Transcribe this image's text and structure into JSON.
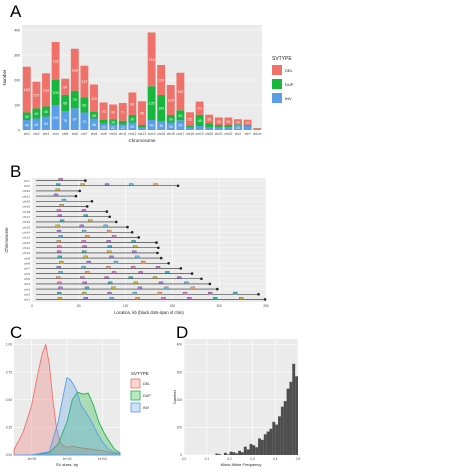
{
  "panels": {
    "A": "A",
    "B": "B",
    "C": "C",
    "D": "D"
  },
  "colors": {
    "DEL": "#f0716a",
    "DUP": "#18b63c",
    "INV": "#5a9ee8",
    "panel_bg": "#ebebeb",
    "grid": "#ffffff",
    "hist": "#4d4d4d",
    "chrom_line": "#222222"
  },
  "chart_data": [
    {
      "panel": "A",
      "type": "bar",
      "stacked": true,
      "xlabel": "Chromosome",
      "ylabel": "Number",
      "ylim": [
        0,
        420
      ],
      "yticks": [
        0,
        100,
        200,
        300,
        400
      ],
      "categories": [
        "chr1",
        "chr2",
        "chr3",
        "chr4",
        "chr5",
        "chr6",
        "chr7",
        "chr8",
        "chr9",
        "chr10",
        "chr11",
        "chr12",
        "chr13",
        "chr14",
        "chr15",
        "chr16",
        "chr17",
        "chr18",
        "chr19",
        "chr20",
        "chr21",
        "chr22",
        "chrX",
        "chrY",
        "chrUn"
      ],
      "legend_title": "SVTYPE",
      "legend_position": "right",
      "series": [
        {
          "name": "INV",
          "color_key": "INV",
          "values": [
            40,
            46,
            54,
            100,
            75,
            87,
            70,
            46,
            25,
            22,
            22,
            30,
            9,
            40,
            36,
            30,
            39,
            9,
            16,
            12,
            12,
            12,
            20,
            18,
            3
          ]
        },
        {
          "name": "DUP",
          "color_key": "DUP",
          "values": [
            30,
            40,
            40,
            100,
            66,
            70,
            60,
            26,
            15,
            20,
            15,
            30,
            11,
            135,
            104,
            30,
            40,
            10,
            45,
            14,
            8,
            8,
            3,
            3,
            2
          ]
        },
        {
          "name": "DEL",
          "color_key": "DEL",
          "values": [
            183,
            107,
            133,
            152,
            64,
            168,
            127,
            110,
            70,
            60,
            71,
            90,
            95,
            215,
            120,
            120,
            150,
            52,
            53,
            35,
            30,
            30,
            20,
            20,
            3
          ]
        }
      ],
      "value_labels": [
        "183",
        "40",
        "107",
        "46",
        "133",
        "54",
        "152",
        "175",
        "100",
        "64",
        "75",
        "168",
        "96",
        "87",
        "127",
        "60",
        "70",
        "110",
        "46",
        "25",
        "21",
        "71",
        "90",
        "95",
        "135",
        "104",
        "215",
        "96",
        "120",
        "40",
        "30",
        "12",
        "39",
        "9",
        "12",
        "12",
        "20",
        "9",
        "20",
        "18"
      ]
    },
    {
      "panel": "B",
      "type": "scatter",
      "xlabel": "Location, kb (black dots-span of chm)",
      "ylabel": "Chromosome",
      "xlim": [
        0,
        250
      ],
      "xticks": [
        "0",
        "50",
        "100",
        "150",
        "200",
        "250"
      ],
      "rows": [
        "chrY",
        "chrX",
        "chr22",
        "chr21",
        "chr20",
        "chr19",
        "chr18",
        "chr17",
        "chr16",
        "chr15",
        "chr14",
        "chr13",
        "chr12",
        "chr11",
        "chr10",
        "chr9",
        "chr8",
        "chr7",
        "chr6",
        "chr5",
        "chr4",
        "chr3",
        "chr2",
        "chr1"
      ],
      "chrom_length": [
        57,
        156,
        51,
        47,
        64,
        59,
        80,
        83,
        90,
        102,
        107,
        114,
        133,
        135,
        134,
        138,
        146,
        159,
        171,
        181,
        190,
        198,
        242,
        249
      ]
    },
    {
      "panel": "C",
      "type": "area",
      "subtype": "density",
      "xlabel": "SV sizes, bp",
      "ylabel": "",
      "xtick_labels": [
        "1e+00",
        "1e+02",
        "1e+04"
      ],
      "ytick_labels": [
        "0.00",
        "0.25",
        "0.50",
        "0.75",
        "1.00"
      ],
      "ylim": [
        0,
        1.05
      ],
      "legend_title": "SVTYPE",
      "legend_position": "right",
      "series": [
        {
          "name": "DEL",
          "color_key": "DEL",
          "x": [
            0.0,
            0.5,
            1.0,
            1.3,
            1.6,
            1.8,
            2.0,
            2.2,
            2.4,
            2.6,
            2.8,
            3.0,
            3.3,
            3.6,
            4.0,
            4.5,
            5.0,
            5.5,
            6.0
          ],
          "y": [
            0.05,
            0.2,
            0.45,
            0.7,
            0.92,
            1.0,
            0.82,
            0.5,
            0.25,
            0.12,
            0.08,
            0.07,
            0.08,
            0.07,
            0.06,
            0.05,
            0.04,
            0.02,
            0.01
          ]
        },
        {
          "name": "DUP",
          "color_key": "DUP",
          "x": [
            0.0,
            1.0,
            2.0,
            2.5,
            3.0,
            3.3,
            3.6,
            3.9,
            4.2,
            4.5,
            4.8,
            5.1,
            5.4,
            5.7,
            6.0
          ],
          "y": [
            0.0,
            0.0,
            0.02,
            0.1,
            0.3,
            0.5,
            0.57,
            0.55,
            0.56,
            0.45,
            0.3,
            0.2,
            0.12,
            0.05,
            0.02
          ]
        },
        {
          "name": "INV",
          "color_key": "INV",
          "x": [
            0.0,
            1.0,
            2.0,
            2.5,
            2.8,
            3.0,
            3.2,
            3.5,
            3.8,
            4.1,
            4.4,
            4.7,
            5.0,
            5.3,
            5.6,
            6.0
          ],
          "y": [
            0.0,
            0.0,
            0.03,
            0.3,
            0.55,
            0.7,
            0.68,
            0.6,
            0.45,
            0.38,
            0.3,
            0.2,
            0.12,
            0.06,
            0.03,
            0.01
          ]
        }
      ]
    },
    {
      "panel": "D",
      "type": "bar",
      "subtype": "histogram",
      "xlabel": "Minor Allele Frequency",
      "ylabel": "Number",
      "xlim": [
        0,
        0.5
      ],
      "xtick_labels": [
        "0.0",
        "0.1",
        "0.2",
        "0.3",
        "0.4",
        "0.5"
      ],
      "ytick_labels": [
        "0",
        "100",
        "200",
        "300",
        "400"
      ],
      "ylim": [
        0,
        420
      ],
      "bin_width": 0.0125,
      "values": [
        0,
        0,
        0,
        0,
        0,
        0,
        0,
        0,
        0,
        0,
        0,
        5,
        3,
        0,
        8,
        2,
        12,
        10,
        6,
        15,
        10,
        30,
        20,
        40,
        35,
        28,
        60,
        55,
        75,
        85,
        95,
        120,
        110,
        140,
        175,
        195,
        240,
        265,
        330,
        285
      ]
    }
  ]
}
